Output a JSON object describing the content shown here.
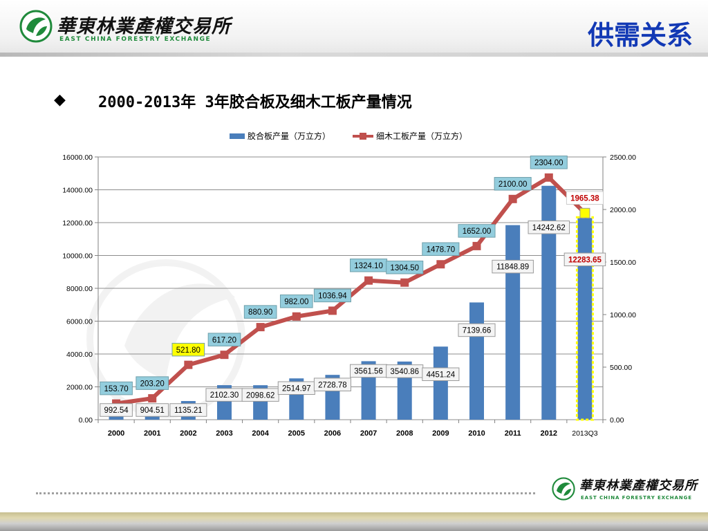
{
  "header": {
    "logo_cn": "華東林業產權交易所",
    "logo_en": "EAST CHINA FORESTRY EXCHANGE",
    "section_title": "供需关系"
  },
  "heading": {
    "bullet": "◆",
    "text": "2000-2013年 3年胶合板及细木工板产量情况"
  },
  "footer": {
    "logo_cn": "華東林業產權交易所",
    "logo_en": "EAST CHINA FORESTRY EXCHANGE"
  },
  "colors": {
    "title_blue": "#1239b5",
    "bar_blue": "#4a7ebb",
    "line_red": "#c0504d",
    "label_teal": "#93cddd",
    "highlight_yellow": "#ffff00",
    "logo_green": "#1f8a3b"
  },
  "icons": {
    "logo": "forestry-leaf-logo-icon",
    "bullet": "diamond-bullet-icon"
  },
  "chart_data": {
    "type": "bar",
    "title": "",
    "categories": [
      "2000",
      "2001",
      "2002",
      "2003",
      "2004",
      "2005",
      "2006",
      "2007",
      "2008",
      "2009",
      "2010",
      "2011",
      "2012",
      "2013Q3"
    ],
    "series": [
      {
        "name": "胶合板产量（万立方）",
        "type": "bar",
        "axis": "left",
        "values": [
          992.54,
          904.51,
          1135.21,
          2102.3,
          2098.62,
          2514.97,
          2728.78,
          3561.56,
          3540.86,
          4451.24,
          7139.66,
          11848.89,
          14242.62,
          12283.65
        ],
        "labels": [
          "992.54",
          "904.51",
          "1135.21",
          "2102.30",
          "2098.62",
          "2514.97",
          "2728.78",
          "3561.56",
          "3540.86",
          "4451.24",
          "7139.66",
          "11848.89",
          "14242.62",
          "12283.65"
        ]
      },
      {
        "name": "细木工板产量（万立方）",
        "type": "line",
        "axis": "right",
        "values": [
          153.7,
          203.2,
          521.8,
          617.2,
          880.9,
          982.0,
          1036.94,
          1324.1,
          1304.5,
          1478.7,
          1652.0,
          2100.0,
          2304.0,
          1965.38
        ],
        "labels": [
          "153.70",
          "203.20",
          "521.80",
          "617.20",
          "880.90",
          "982.00",
          "1036.94",
          "1324.10",
          "1304.50",
          "1478.70",
          "1652.00",
          "2100.00",
          "2304.00",
          "1965.38"
        ]
      }
    ],
    "y_left": {
      "lim": [
        0,
        16000
      ],
      "ticks": [
        "0.00",
        "2000.00",
        "4000.00",
        "6000.00",
        "8000.00",
        "10000.00",
        "12000.00",
        "14000.00",
        "16000.00"
      ]
    },
    "y_right": {
      "lim": [
        0,
        2500
      ],
      "ticks": [
        "0.00",
        "500.00",
        "1000.00",
        "1500.00",
        "2000.00",
        "2500.00"
      ]
    },
    "grid": true,
    "legend": "top-center",
    "highlighted_label": "521.80",
    "highlighted_category": "2013Q3"
  }
}
